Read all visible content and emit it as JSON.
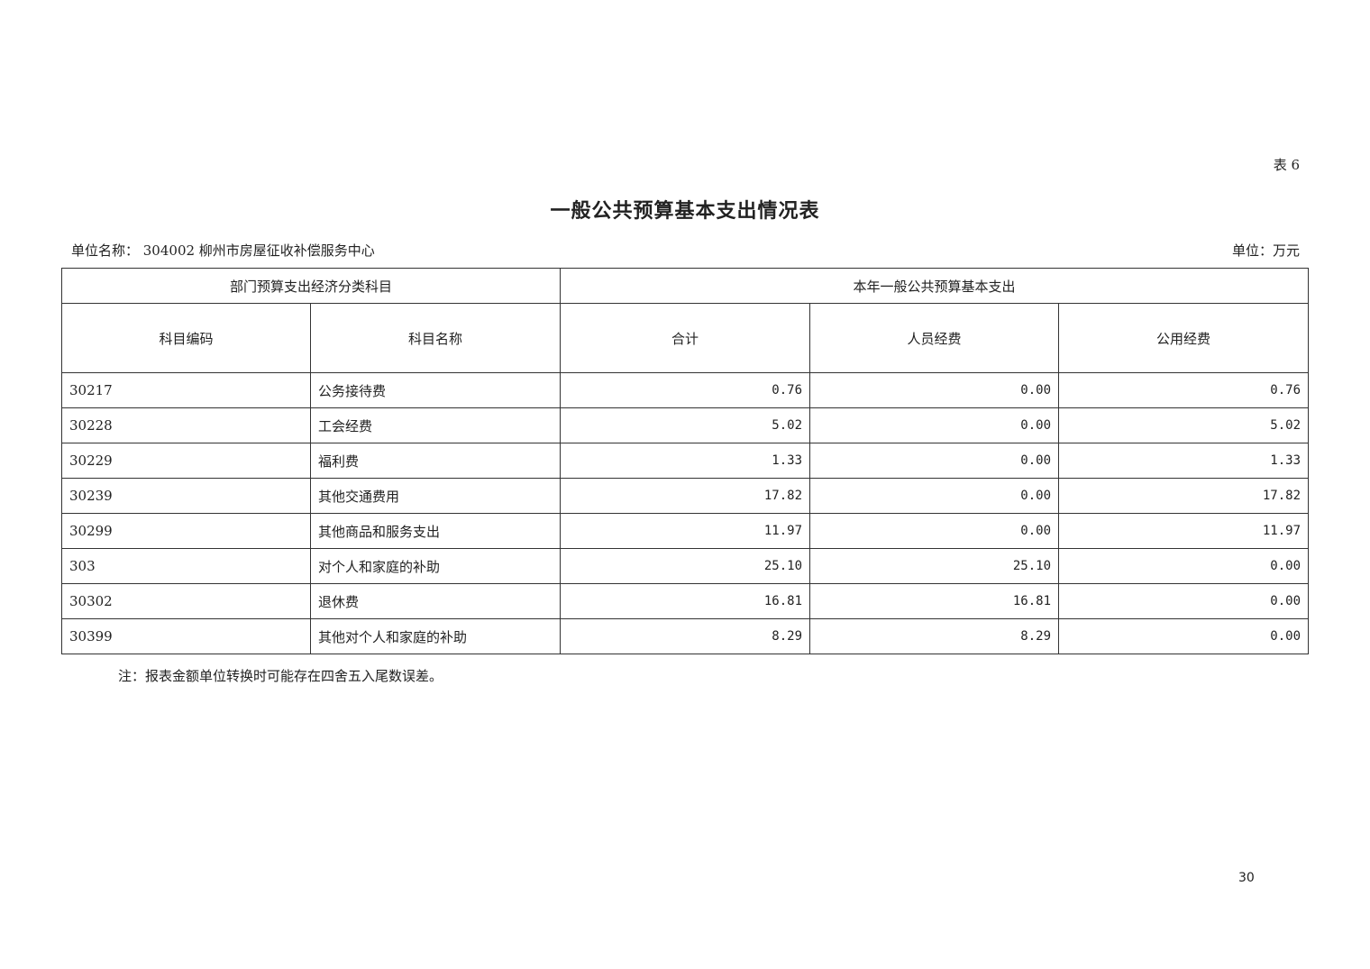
{
  "table_no": "表 6",
  "title": "一般公共预算基本支出情况表",
  "unit_name": "单位名称：  304002 柳州市房屋征收补偿服务中心",
  "unit_money": "单位：万元",
  "header": {
    "group_left": "部门预算支出经济分类科目",
    "group_right": "本年一般公共预算基本支出",
    "columns": [
      "科目编码",
      "科目名称",
      "合计",
      "人员经费",
      "公用经费"
    ]
  },
  "rows": [
    [
      "30217",
      "公务接待费",
      "0.76",
      "0.00",
      "0.76"
    ],
    [
      "30228",
      "工会经费",
      "5.02",
      "0.00",
      "5.02"
    ],
    [
      "30229",
      "福利费",
      "1.33",
      "0.00",
      "1.33"
    ],
    [
      "30239",
      "其他交通费用",
      "17.82",
      "0.00",
      "17.82"
    ],
    [
      "30299",
      "其他商品和服务支出",
      "11.97",
      "0.00",
      "11.97"
    ],
    [
      "303",
      "对个人和家庭的补助",
      "25.10",
      "25.10",
      "0.00"
    ],
    [
      "30302",
      "退休费",
      "16.81",
      "16.81",
      "0.00"
    ],
    [
      "30399",
      "其他对个人和家庭的补助",
      "8.29",
      "8.29",
      "0.00"
    ]
  ],
  "note": "注：报表金额单位转换时可能存在四舍五入尾数误差。",
  "page_number": "30"
}
